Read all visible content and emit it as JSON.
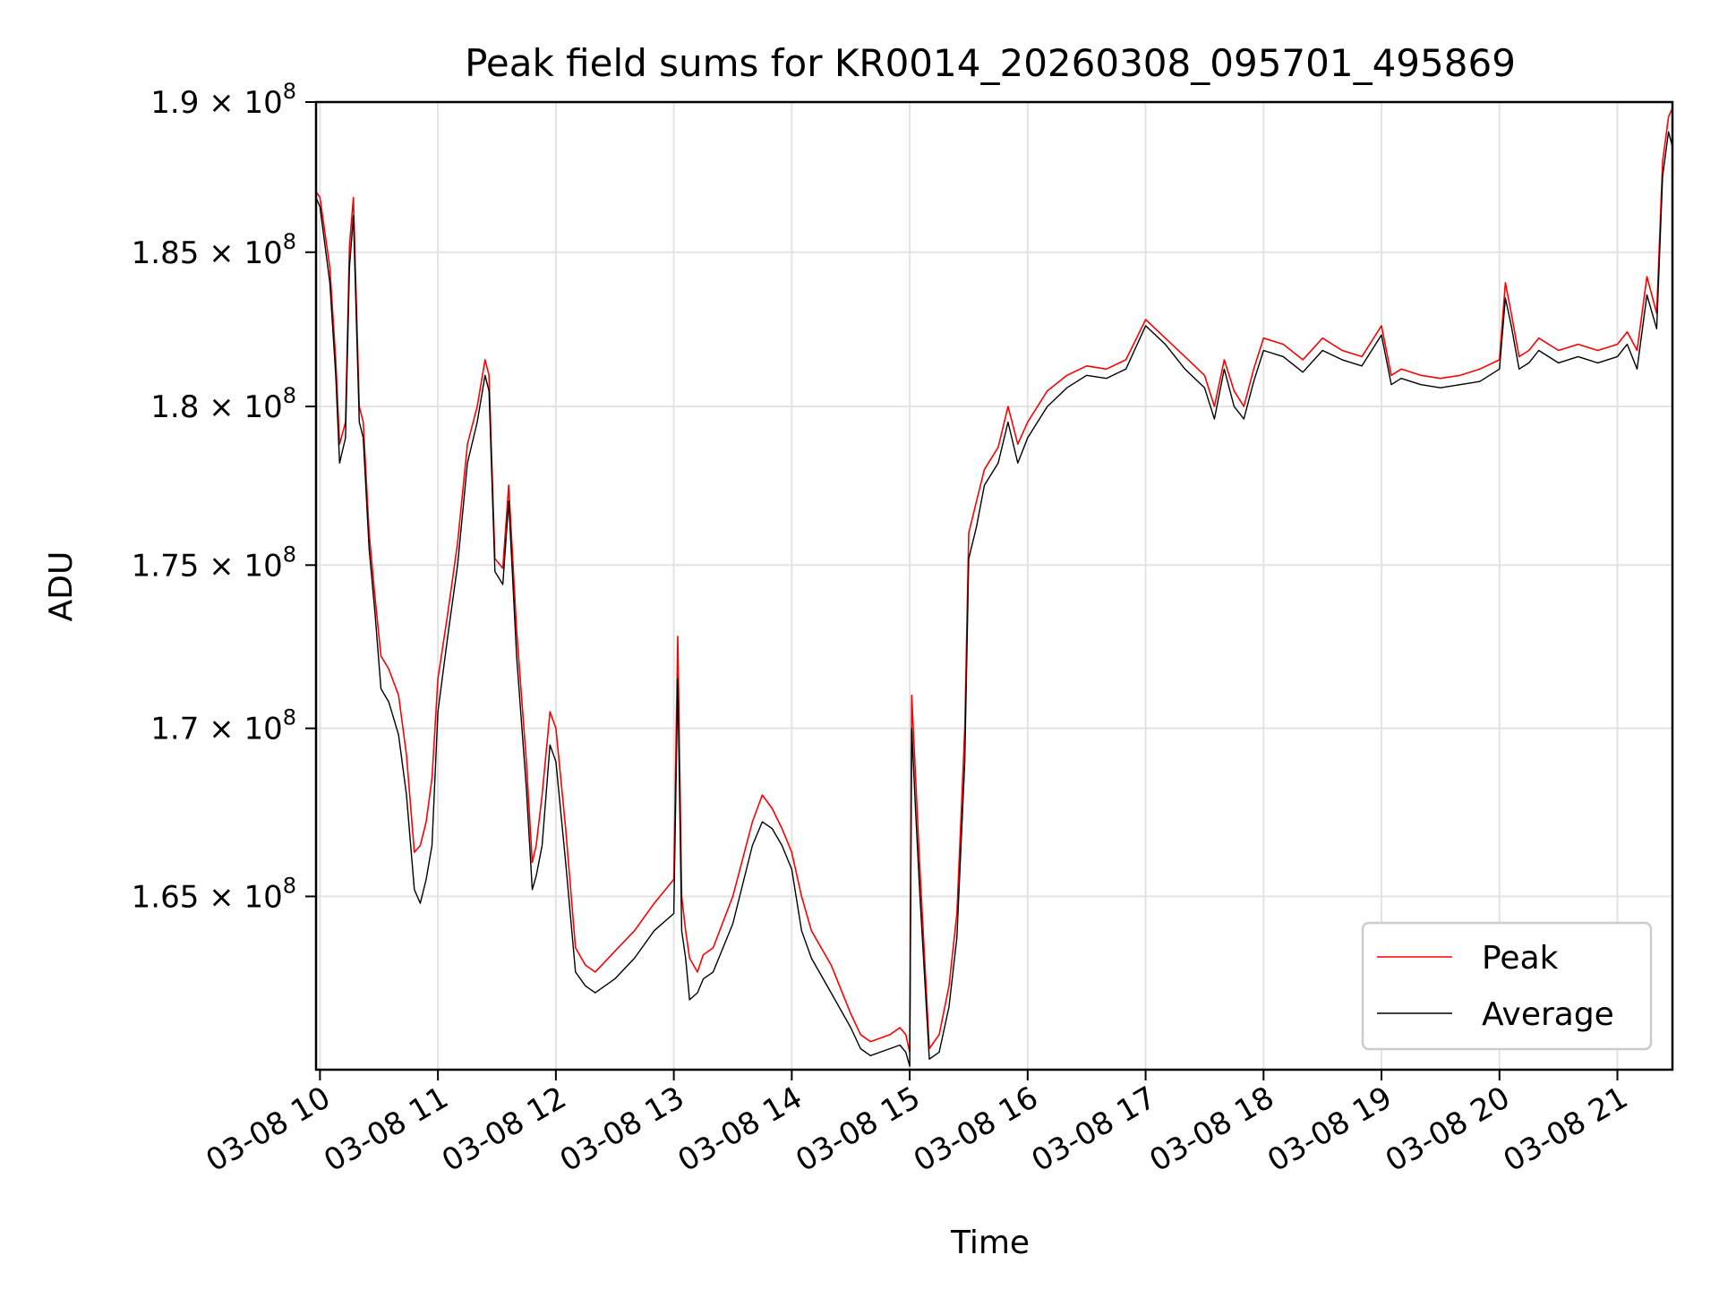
{
  "chart_data": {
    "type": "line",
    "title": "Peak field sums for KR0014_20260308_095701_495869",
    "xlabel": "Time",
    "ylabel": "ADU",
    "x_ticks": [
      "03-08 10",
      "03-08 11",
      "03-08 12",
      "03-08 13",
      "03-08 14",
      "03-08 15",
      "03-08 16",
      "03-08 17",
      "03-08 18",
      "03-08 19",
      "03-08 20",
      "03-08 21"
    ],
    "y_ticks": [
      {
        "value": 165000000.0,
        "mantissa": "1.65",
        "base": "× 10",
        "exp": "8"
      },
      {
        "value": 170000000.0,
        "mantissa": "1.7",
        "base": "× 10",
        "exp": "8"
      },
      {
        "value": 175000000.0,
        "mantissa": "1.75",
        "base": "× 10",
        "exp": "8"
      },
      {
        "value": 180000000.0,
        "mantissa": "1.8",
        "base": "× 10",
        "exp": "8"
      },
      {
        "value": 185000000.0,
        "mantissa": "1.85",
        "base": "× 10",
        "exp": "8"
      },
      {
        "value": 190000000.0,
        "mantissa": "1.9",
        "base": "× 10",
        "exp": "8"
      }
    ],
    "xlim": [
      "2026-03-08 09:58",
      "2026-03-08 21:28"
    ],
    "ylim": [
      160000000.0,
      190000000.0
    ],
    "y_scale": "log",
    "grid": true,
    "legend_position": "lower-right",
    "series": [
      {
        "name": "Peak",
        "color": "#ff0000",
        "x": [
          "09:58",
          "10:00",
          "10:05",
          "10:08",
          "10:10",
          "10:13",
          "10:15",
          "10:17",
          "10:20",
          "10:22",
          "10:25",
          "10:28",
          "10:31",
          "10:35",
          "10:40",
          "10:44",
          "10:48",
          "10:51",
          "10:54",
          "10:57",
          "11:00",
          "11:05",
          "11:10",
          "11:15",
          "11:20",
          "11:24",
          "11:26",
          "11:29",
          "11:33",
          "11:36",
          "11:40",
          "11:45",
          "11:48",
          "11:50",
          "11:53",
          "11:57",
          "12:00",
          "12:05",
          "12:10",
          "12:15",
          "12:20",
          "12:30",
          "12:40",
          "12:50",
          "13:00",
          "13:02",
          "13:04",
          "13:06",
          "13:08",
          "13:12",
          "13:15",
          "13:20",
          "13:30",
          "13:40",
          "13:45",
          "13:50",
          "13:55",
          "14:00",
          "14:05",
          "14:10",
          "14:20",
          "14:30",
          "14:35",
          "14:40",
          "14:45",
          "14:50",
          "14:55",
          "14:58",
          "15:00",
          "15:01",
          "15:03",
          "15:05",
          "15:10",
          "15:15",
          "15:20",
          "15:24",
          "15:28",
          "15:30",
          "15:34",
          "15:38",
          "15:45",
          "15:50",
          "15:55",
          "16:00",
          "16:10",
          "16:20",
          "16:30",
          "16:40",
          "16:50",
          "17:00",
          "17:10",
          "17:20",
          "17:30",
          "17:35",
          "17:40",
          "17:45",
          "17:50",
          "17:55",
          "18:00",
          "18:10",
          "18:20",
          "18:30",
          "18:40",
          "18:50",
          "19:00",
          "19:05",
          "19:10",
          "19:20",
          "19:30",
          "19:40",
          "19:50",
          "20:00",
          "20:03",
          "20:06",
          "20:10",
          "20:15",
          "20:20",
          "20:30",
          "20:40",
          "20:50",
          "21:00",
          "21:05",
          "21:10",
          "21:15",
          "21:20",
          "21:23",
          "21:26",
          "21:28"
        ],
        "values": [
          187000000.0,
          186800000.0,
          184500000.0,
          181500000.0,
          178800000.0,
          179500000.0,
          185200000.0,
          186800000.0,
          180000000.0,
          179500000.0,
          176000000.0,
          174000000.0,
          172200000.0,
          171800000.0,
          171000000.0,
          169200000.0,
          166300000.0,
          166500000.0,
          167200000.0,
          168500000.0,
          171500000.0,
          173500000.0,
          175700000.0,
          178800000.0,
          180000000.0,
          181500000.0,
          181000000.0,
          175200000.0,
          174900000.0,
          177500000.0,
          173000000.0,
          169000000.0,
          166000000.0,
          166500000.0,
          168000000.0,
          170500000.0,
          170000000.0,
          167000000.0,
          163500000.0,
          163000000.0,
          162800000.0,
          163400000.0,
          164000000.0,
          164800000.0,
          165500000.0,
          172800000.0,
          165000000.0,
          164000000.0,
          163200000.0,
          162800000.0,
          163300000.0,
          163500000.0,
          165000000.0,
          167200000.0,
          168000000.0,
          167600000.0,
          167000000.0,
          166300000.0,
          165000000.0,
          164000000.0,
          163000000.0,
          161600000.0,
          161000000.0,
          160800000.0,
          160900000.0,
          161000000.0,
          161200000.0,
          161000000.0,
          160500000.0,
          171000000.0,
          168500000.0,
          166000000.0,
          160600000.0,
          161000000.0,
          162400000.0,
          164500000.0,
          170000000.0,
          176000000.0,
          177000000.0,
          178000000.0,
          178700000.0,
          180000000.0,
          178800000.0,
          179500000.0,
          180500000.0,
          181000000.0,
          181300000.0,
          181200000.0,
          181500000.0,
          182800000.0,
          182200000.0,
          181600000.0,
          181000000.0,
          180000000.0,
          181500000.0,
          180500000.0,
          180000000.0,
          181200000.0,
          182200000.0,
          182000000.0,
          181500000.0,
          182200000.0,
          181800000.0,
          181600000.0,
          182600000.0,
          181000000.0,
          181200000.0,
          181000000.0,
          180900000.0,
          181000000.0,
          181200000.0,
          181500000.0,
          184000000.0,
          183000000.0,
          181600000.0,
          181800000.0,
          182200000.0,
          181800000.0,
          182000000.0,
          181800000.0,
          182000000.0,
          182400000.0,
          181800000.0,
          184200000.0,
          183000000.0,
          188000000.0,
          189500000.0,
          189800000.0
        ]
      },
      {
        "name": "Average",
        "color": "#000000",
        "x": [
          "09:58",
          "10:00",
          "10:05",
          "10:08",
          "10:10",
          "10:13",
          "10:15",
          "10:17",
          "10:20",
          "10:22",
          "10:25",
          "10:28",
          "10:31",
          "10:35",
          "10:40",
          "10:44",
          "10:48",
          "10:51",
          "10:54",
          "10:57",
          "11:00",
          "11:05",
          "11:10",
          "11:15",
          "11:20",
          "11:24",
          "11:26",
          "11:29",
          "11:33",
          "11:36",
          "11:40",
          "11:45",
          "11:48",
          "11:50",
          "11:53",
          "11:57",
          "12:00",
          "12:05",
          "12:10",
          "12:15",
          "12:20",
          "12:30",
          "12:40",
          "12:50",
          "13:00",
          "13:02",
          "13:04",
          "13:06",
          "13:08",
          "13:12",
          "13:15",
          "13:20",
          "13:30",
          "13:40",
          "13:45",
          "13:50",
          "13:55",
          "14:00",
          "14:05",
          "14:10",
          "14:20",
          "14:30",
          "14:35",
          "14:40",
          "14:45",
          "14:50",
          "14:55",
          "14:58",
          "15:00",
          "15:01",
          "15:03",
          "15:05",
          "15:10",
          "15:15",
          "15:20",
          "15:24",
          "15:28",
          "15:30",
          "15:34",
          "15:38",
          "15:45",
          "15:50",
          "15:55",
          "16:00",
          "16:10",
          "16:20",
          "16:30",
          "16:40",
          "16:50",
          "17:00",
          "17:10",
          "17:20",
          "17:30",
          "17:35",
          "17:40",
          "17:45",
          "17:50",
          "17:55",
          "18:00",
          "18:10",
          "18:20",
          "18:30",
          "18:40",
          "18:50",
          "19:00",
          "19:05",
          "19:10",
          "19:20",
          "19:30",
          "19:40",
          "19:50",
          "20:00",
          "20:03",
          "20:06",
          "20:10",
          "20:15",
          "20:20",
          "20:30",
          "20:40",
          "20:50",
          "21:00",
          "21:05",
          "21:10",
          "21:15",
          "21:20",
          "21:23",
          "21:26",
          "21:28"
        ],
        "values": [
          186800000.0,
          186500000.0,
          184000000.0,
          181000000.0,
          178200000.0,
          179000000.0,
          184500000.0,
          186200000.0,
          179500000.0,
          179000000.0,
          175500000.0,
          173500000.0,
          171200000.0,
          170800000.0,
          169800000.0,
          168000000.0,
          165200000.0,
          164800000.0,
          165500000.0,
          166500000.0,
          170500000.0,
          172800000.0,
          175000000.0,
          178200000.0,
          179500000.0,
          181000000.0,
          180500000.0,
          174800000.0,
          174400000.0,
          177000000.0,
          172200000.0,
          168200000.0,
          165200000.0,
          165600000.0,
          166500000.0,
          169500000.0,
          169000000.0,
          166000000.0,
          162800000.0,
          162400000.0,
          162200000.0,
          162600000.0,
          163200000.0,
          164000000.0,
          164500000.0,
          171500000.0,
          164000000.0,
          163200000.0,
          162000000.0,
          162200000.0,
          162600000.0,
          162800000.0,
          164200000.0,
          166500000.0,
          167200000.0,
          167000000.0,
          166500000.0,
          165800000.0,
          164000000.0,
          163200000.0,
          162200000.0,
          161200000.0,
          160600000.0,
          160400000.0,
          160500000.0,
          160600000.0,
          160700000.0,
          160500000.0,
          160100000.0,
          170000000.0,
          167500000.0,
          165200000.0,
          160300000.0,
          160500000.0,
          161800000.0,
          163800000.0,
          169000000.0,
          175200000.0,
          176200000.0,
          177500000.0,
          178200000.0,
          179500000.0,
          178200000.0,
          179000000.0,
          180000000.0,
          180600000.0,
          181000000.0,
          180900000.0,
          181200000.0,
          182600000.0,
          182000000.0,
          181200000.0,
          180600000.0,
          179600000.0,
          181200000.0,
          180000000.0,
          179600000.0,
          180800000.0,
          181800000.0,
          181600000.0,
          181100000.0,
          181800000.0,
          181500000.0,
          181300000.0,
          182300000.0,
          180700000.0,
          180900000.0,
          180700000.0,
          180600000.0,
          180700000.0,
          180800000.0,
          181200000.0,
          183500000.0,
          182600000.0,
          181200000.0,
          181400000.0,
          181800000.0,
          181400000.0,
          181600000.0,
          181400000.0,
          181600000.0,
          182000000.0,
          181200000.0,
          183600000.0,
          182500000.0,
          187500000.0,
          189000000.0,
          188500000.0
        ]
      }
    ]
  }
}
